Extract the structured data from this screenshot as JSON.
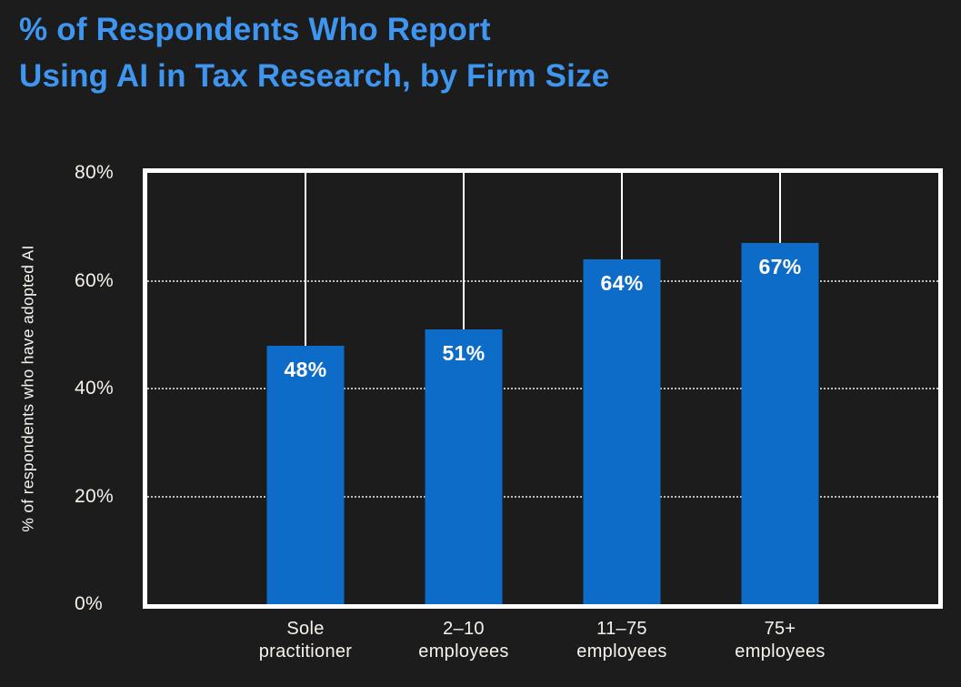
{
  "title": {
    "line1": "% of Respondents Who Report",
    "line2": "Using AI in Tax Research, by Firm Size"
  },
  "colors": {
    "background": "#1d1c1d",
    "title_text": "#3e96f0",
    "bar_fill": "#0d6cc7",
    "axis_text": "#f7f3ec",
    "frame": "#ffffff"
  },
  "chart_data": {
    "type": "bar",
    "title": "% of Respondents Who Report Using AI in Tax Research, by Firm Size",
    "categories": [
      "Sole practitioner",
      "2–10 employees",
      "11–75 employees",
      "75+ employees"
    ],
    "values": [
      48,
      51,
      64,
      67
    ],
    "value_labels": [
      "48%",
      "51%",
      "64%",
      "67%"
    ],
    "xlabel": "",
    "ylabel": "% of respondents who have adopted AI",
    "ylim": [
      0,
      80
    ],
    "yticks": [
      0,
      20,
      40,
      60,
      80
    ],
    "ytick_labels": [
      "0%",
      "20%",
      "40%",
      "60%",
      "80%"
    ],
    "gridlines": [
      20,
      40,
      60
    ],
    "grid_style": "dotted horizontal",
    "category_guide_lines": "solid vertical from top border to bar top",
    "legend_position": "none"
  }
}
